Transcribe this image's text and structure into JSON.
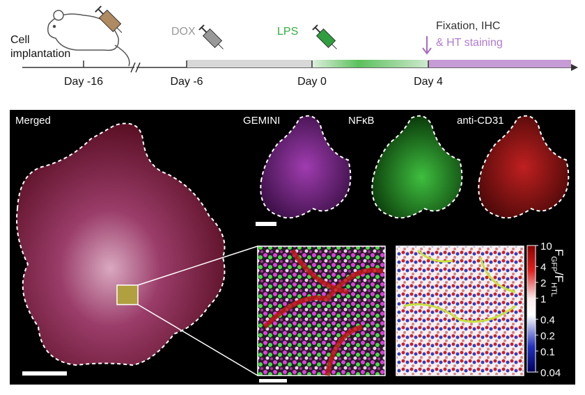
{
  "timeline": {
    "cell_implantation": [
      "Cell",
      "implantation"
    ],
    "days": [
      "Day -16",
      "Day -6",
      "Day 0",
      "Day 4"
    ],
    "dox": "DOX",
    "lps": "LPS",
    "fixation": [
      "Fixation, IHC",
      "& HT staining"
    ]
  },
  "panels": {
    "merged": "Merged",
    "gemini": "GEMINI",
    "nfkb": "NFκB",
    "cd31": "anti-CD31"
  },
  "colorbar": {
    "ticks": [
      10,
      4,
      2,
      1,
      0.4,
      0.2,
      0.1,
      0.04
    ],
    "title": {
      "f1": "F",
      "sub1": "GFP",
      "slash": "/F",
      "sub2": "HTL"
    }
  }
}
